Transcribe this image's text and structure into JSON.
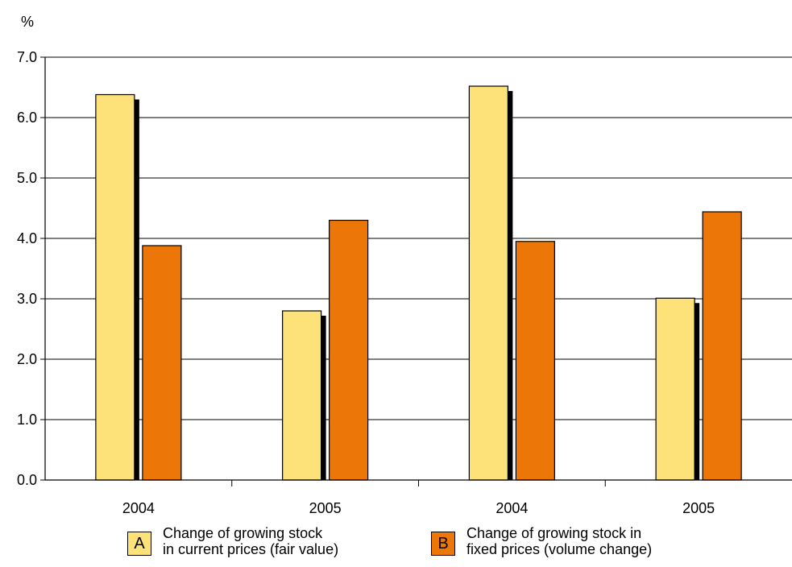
{
  "chart_data": {
    "type": "bar",
    "unit": "%",
    "categories": [
      "2004",
      "2005",
      "2004",
      "2005"
    ],
    "series": [
      {
        "key": "A",
        "name_line1": "Change of growing stock",
        "name_line2": "in current prices (fair value)",
        "color": "#fde27a",
        "values": [
          6.38,
          2.8,
          6.52,
          3.01
        ]
      },
      {
        "key": "B",
        "name_line1": "Change of growing stock in",
        "name_line2": "fixed prices (volume change)",
        "color": "#ec7607",
        "values": [
          3.88,
          4.3,
          3.95,
          4.44
        ]
      }
    ],
    "ylim": [
      0,
      7
    ],
    "yticks": [
      "0.0",
      "1.0",
      "2.0",
      "3.0",
      "4.0",
      "5.0",
      "6.0",
      "7.0"
    ],
    "grid": true,
    "legend_position": "bottom"
  }
}
